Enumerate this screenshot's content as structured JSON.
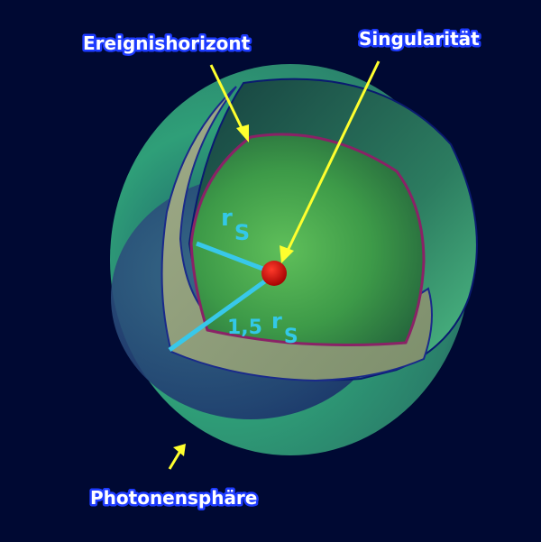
{
  "labels": {
    "event_horizon": "Ereignishorizont",
    "singularity": "Singularität",
    "photon_sphere": "Photonensphäre"
  },
  "radii": {
    "inner": {
      "symbol": "r",
      "subscript": "S"
    },
    "outer": {
      "factor": "1,5",
      "symbol": "r",
      "subscript": "S"
    }
  },
  "colors": {
    "background": "#000933",
    "arrow": "#ffff2e",
    "radius_line": "#38c8ea",
    "singularity": "#c40000",
    "horizon_outline": "#8a2266"
  }
}
